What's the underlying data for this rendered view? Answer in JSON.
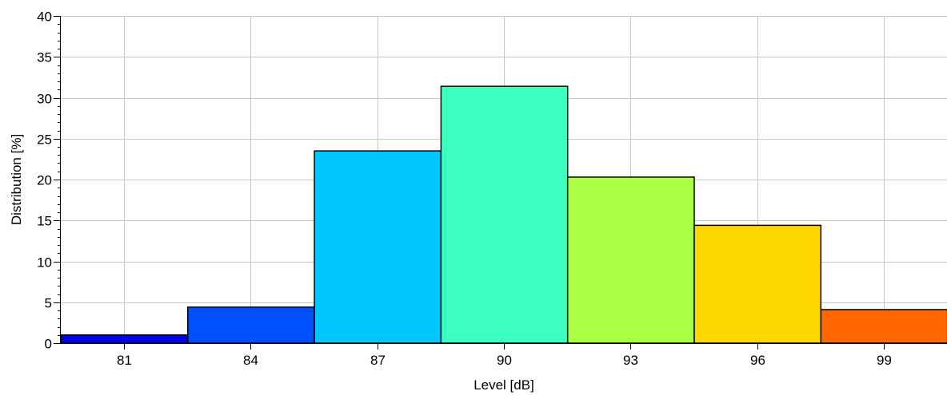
{
  "chart_data": {
    "type": "bar",
    "categories": [
      "81",
      "84",
      "87",
      "90",
      "93",
      "96",
      "99"
    ],
    "values": [
      1.0,
      4.4,
      23.5,
      31.4,
      20.3,
      14.4,
      4.1
    ],
    "colors": [
      "#0000ee",
      "#0050ff",
      "#00c8ff",
      "#3dffc2",
      "#aaff44",
      "#ffd700",
      "#ff6600"
    ],
    "xlabel": "Level [dB]",
    "ylabel": "Distribution [%]",
    "ylim": [
      0,
      40
    ],
    "yticks": [
      "0",
      "5",
      "10",
      "15",
      "20",
      "25",
      "30",
      "35",
      "40"
    ],
    "grid": true
  }
}
